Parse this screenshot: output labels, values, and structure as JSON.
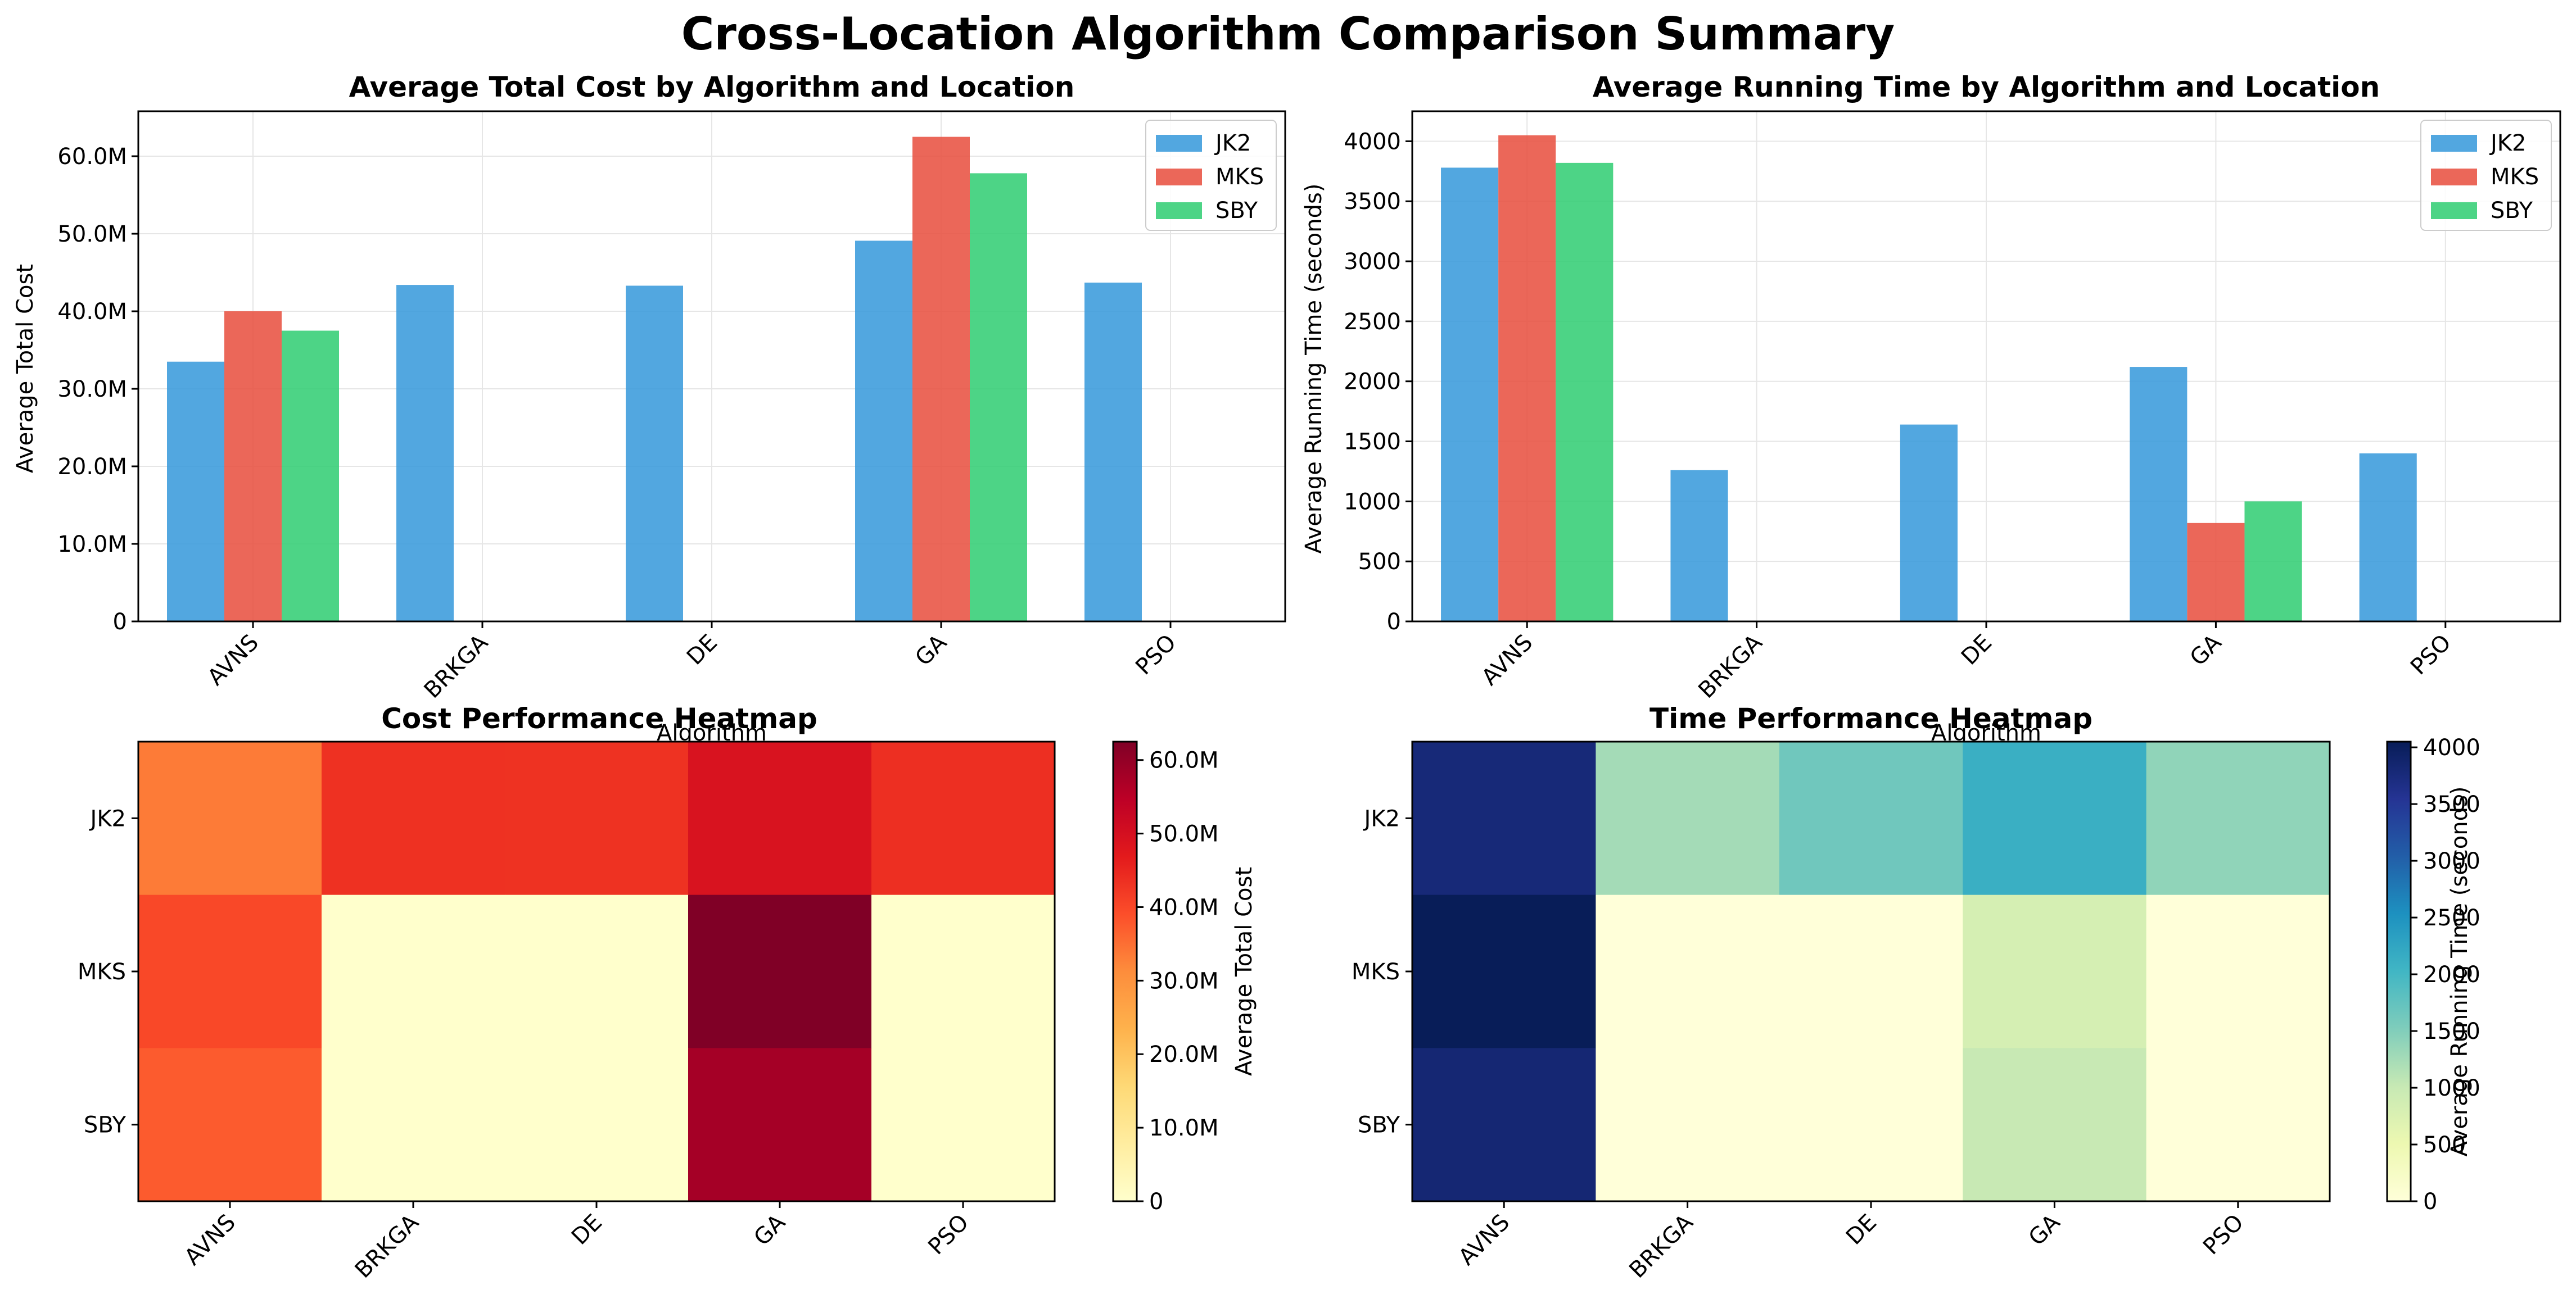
{
  "figure": {
    "title": "Cross-Location Algorithm Comparison Summary"
  },
  "chart_data": [
    {
      "type": "bar",
      "title": "Average Total Cost by Algorithm and Location",
      "xlabel": "Algorithm",
      "ylabel": "Average Total Cost",
      "categories": [
        "AVNS",
        "BRKGA",
        "DE",
        "GA",
        "PSO"
      ],
      "ylim": [
        0,
        65800000
      ],
      "yticks": [
        0,
        10000000,
        20000000,
        30000000,
        40000000,
        50000000,
        60000000
      ],
      "ytick_labels": [
        "0",
        "10.0M",
        "20.0M",
        "30.0M",
        "40.0M",
        "50.0M",
        "60.0M"
      ],
      "grid": true,
      "legend": "top-right",
      "series": [
        {
          "name": "JK2",
          "color": "#3498db",
          "values": [
            33500000,
            43400000,
            43300000,
            49100000,
            43700000
          ]
        },
        {
          "name": "MKS",
          "color": "#e74c3c",
          "values": [
            40000000,
            0,
            0,
            62500000,
            0
          ]
        },
        {
          "name": "SBY",
          "color": "#2ecc71",
          "values": [
            37500000,
            0,
            0,
            57800000,
            0
          ]
        }
      ]
    },
    {
      "type": "bar",
      "title": "Average Running Time by Algorithm and Location",
      "xlabel": "Algorithm",
      "ylabel": "Average Running Time (seconds)",
      "categories": [
        "AVNS",
        "BRKGA",
        "DE",
        "GA",
        "PSO"
      ],
      "ylim": [
        0,
        4250
      ],
      "yticks": [
        0,
        500,
        1000,
        1500,
        2000,
        2500,
        3000,
        3500,
        4000
      ],
      "ytick_labels": [
        "0",
        "500",
        "1000",
        "1500",
        "2000",
        "2500",
        "3000",
        "3500",
        "4000"
      ],
      "grid": true,
      "legend": "top-right",
      "series": [
        {
          "name": "JK2",
          "color": "#3498db",
          "values": [
            3780,
            1260,
            1640,
            2120,
            1400
          ]
        },
        {
          "name": "MKS",
          "color": "#e74c3c",
          "values": [
            4050,
            0,
            0,
            820,
            0
          ]
        },
        {
          "name": "SBY",
          "color": "#2ecc71",
          "values": [
            3820,
            0,
            0,
            1000,
            0
          ]
        }
      ]
    },
    {
      "type": "heatmap",
      "title": "Cost Performance Heatmap",
      "x": [
        "AVNS",
        "BRKGA",
        "DE",
        "GA",
        "PSO"
      ],
      "y": [
        "JK2",
        "MKS",
        "SBY"
      ],
      "values": [
        [
          33500000,
          43400000,
          43300000,
          49100000,
          43700000
        ],
        [
          40000000,
          0,
          0,
          62500000,
          0
        ],
        [
          37500000,
          0,
          0,
          57800000,
          0
        ]
      ],
      "colormap": "YlOrRd",
      "colorbar_label": "Average Total Cost",
      "vmin": 0,
      "vmax": 62500000,
      "colorbar_ticks": [
        0,
        10000000,
        20000000,
        30000000,
        40000000,
        50000000,
        60000000
      ],
      "colorbar_tick_labels": [
        "0",
        "10.0M",
        "20.0M",
        "30.0M",
        "40.0M",
        "50.0M",
        "60.0M"
      ]
    },
    {
      "type": "heatmap",
      "title": "Time Performance Heatmap",
      "x": [
        "AVNS",
        "BRKGA",
        "DE",
        "GA",
        "PSO"
      ],
      "y": [
        "JK2",
        "MKS",
        "SBY"
      ],
      "values": [
        [
          3780,
          1260,
          1640,
          2120,
          1400
        ],
        [
          4050,
          0,
          0,
          820,
          0
        ],
        [
          3820,
          0,
          0,
          1000,
          0
        ]
      ],
      "colormap": "YlGnBu",
      "colorbar_label": "Average Running Time (seconds)",
      "vmin": 0,
      "vmax": 4050,
      "colorbar_ticks": [
        0,
        500,
        1000,
        1500,
        2000,
        2500,
        3000,
        3500,
        4000
      ],
      "colorbar_tick_labels": [
        "0",
        "500",
        "1000",
        "1500",
        "2000",
        "2500",
        "3000",
        "3500",
        "4000"
      ]
    }
  ]
}
